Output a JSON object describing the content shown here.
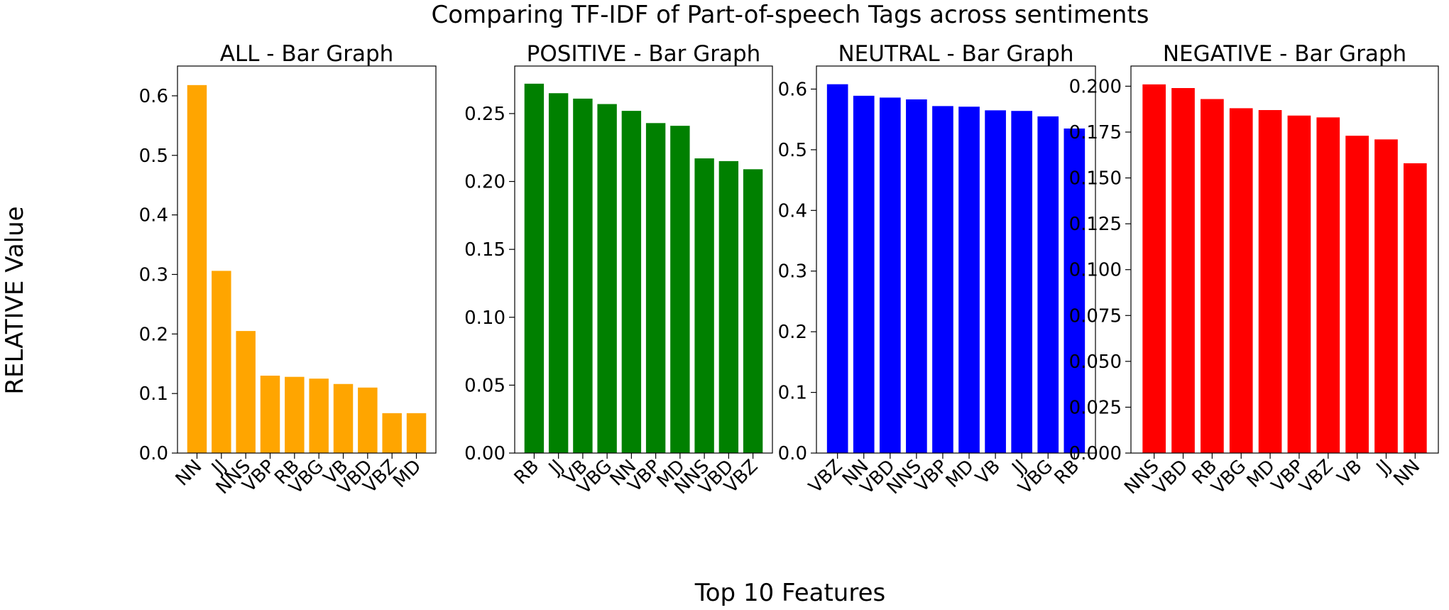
{
  "figure": {
    "suptitle": "Comparing TF-IDF of Part-of-speech Tags across sentiments",
    "xlabel": "Top 10 Features",
    "ylabel": "RELATIVE Value"
  },
  "chart_data": [
    {
      "type": "bar",
      "title": "ALL - Bar Graph",
      "color": "#ffa500",
      "categories": [
        "NN",
        "JJ",
        "NNS",
        "VBP",
        "RB",
        "VBG",
        "VB",
        "VBD",
        "VBZ",
        "MD"
      ],
      "values": [
        0.618,
        0.306,
        0.205,
        0.13,
        0.128,
        0.125,
        0.116,
        0.11,
        0.067,
        0.067
      ],
      "ylim": [
        0,
        0.65
      ],
      "yticks": [
        0.0,
        0.1,
        0.2,
        0.3,
        0.4,
        0.5,
        0.6
      ],
      "ytick_labels": [
        "0.0",
        "0.1",
        "0.2",
        "0.3",
        "0.4",
        "0.5",
        "0.6"
      ]
    },
    {
      "type": "bar",
      "title": "POSITIVE - Bar Graph",
      "color": "#008000",
      "categories": [
        "RB",
        "JJ",
        "VB",
        "VBG",
        "NN",
        "VBP",
        "MD",
        "NNS",
        "VBD",
        "VBZ"
      ],
      "values": [
        0.272,
        0.265,
        0.261,
        0.257,
        0.252,
        0.243,
        0.241,
        0.217,
        0.215,
        0.209
      ],
      "ylim": [
        0,
        0.285
      ],
      "yticks": [
        0.0,
        0.05,
        0.1,
        0.15,
        0.2,
        0.25
      ],
      "ytick_labels": [
        "0.00",
        "0.05",
        "0.10",
        "0.15",
        "0.20",
        "0.25"
      ]
    },
    {
      "type": "bar",
      "title": "NEUTRAL - Bar Graph",
      "color": "#0000ff",
      "categories": [
        "VBZ",
        "NN",
        "VBD",
        "NNS",
        "VBP",
        "MD",
        "VB",
        "JJ",
        "VBG",
        "RB"
      ],
      "values": [
        0.608,
        0.589,
        0.586,
        0.583,
        0.572,
        0.571,
        0.565,
        0.564,
        0.555,
        0.535
      ],
      "ylim": [
        0,
        0.638
      ],
      "yticks": [
        0.0,
        0.1,
        0.2,
        0.3,
        0.4,
        0.5,
        0.6
      ],
      "ytick_labels": [
        "0.0",
        "0.1",
        "0.2",
        "0.3",
        "0.4",
        "0.5",
        "0.6"
      ]
    },
    {
      "type": "bar",
      "title": "NEGATIVE - Bar Graph",
      "color": "#ff0000",
      "categories": [
        "NNS",
        "VBD",
        "RB",
        "VBG",
        "MD",
        "VBP",
        "VBZ",
        "VB",
        "JJ",
        "NN"
      ],
      "values": [
        0.201,
        0.199,
        0.193,
        0.188,
        0.187,
        0.184,
        0.183,
        0.173,
        0.171,
        0.158
      ],
      "ylim": [
        0,
        0.211
      ],
      "yticks": [
        0.0,
        0.025,
        0.05,
        0.075,
        0.1,
        0.125,
        0.15,
        0.175,
        0.2
      ],
      "ytick_labels": [
        "0.000",
        "0.025",
        "0.050",
        "0.075",
        "0.100",
        "0.125",
        "0.150",
        "0.175",
        "0.200"
      ]
    }
  ]
}
